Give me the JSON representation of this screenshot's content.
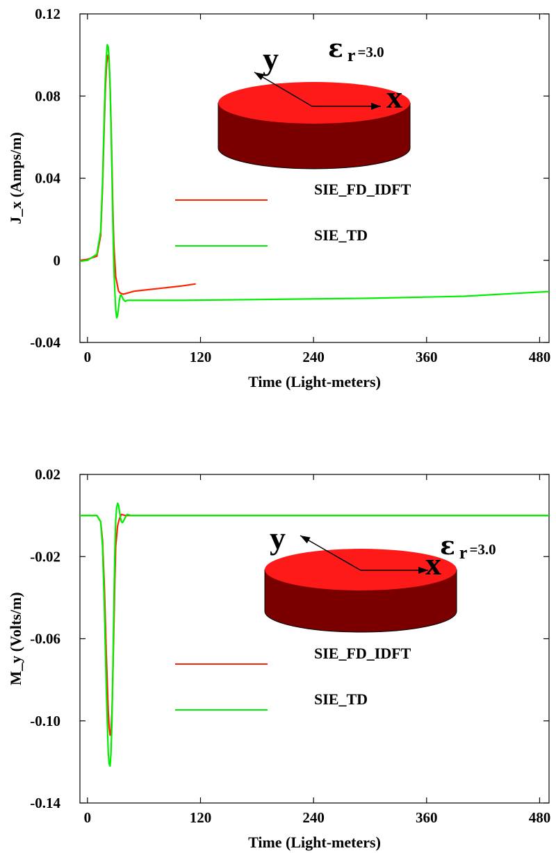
{
  "chart_data": [
    {
      "type": "line",
      "title": "",
      "xlabel": "Time (Light-meters)",
      "ylabel": "J_x (Amps/m)",
      "xlim": [
        -8,
        490
      ],
      "ylim": [
        -0.04,
        0.12
      ],
      "xticks": [
        0,
        120,
        240,
        360,
        480
      ],
      "xtick_labels": [
        "0",
        "120",
        "240",
        "360",
        "480"
      ],
      "yticks": [
        0.12,
        0.08,
        0.04,
        0,
        -0.04
      ],
      "ytick_labels": [
        "0.12",
        "0.08",
        "0.04",
        "0",
        "-0.04"
      ],
      "grid": false,
      "legend": "center-left",
      "inset": {
        "axis_x": "x",
        "axis_y": "y",
        "eps_symbol": "ε",
        "eps_sub": "r",
        "eps_value": "=3.0"
      },
      "series": [
        {
          "name": "SIE_FD_IDFT",
          "color": "#ff2200",
          "x": [
            -8,
            0,
            10,
            14,
            16,
            18,
            19,
            20,
            21,
            22,
            23,
            24,
            25,
            26,
            27,
            28,
            30,
            33,
            35,
            38,
            42,
            50,
            80,
            100,
            115
          ],
          "y": [
            0.0,
            0.0005,
            0.002,
            0.012,
            0.035,
            0.068,
            0.083,
            0.093,
            0.099,
            0.1,
            0.096,
            0.085,
            0.068,
            0.047,
            0.025,
            0.008,
            -0.008,
            -0.015,
            -0.016,
            -0.0165,
            -0.016,
            -0.015,
            -0.0135,
            -0.0125,
            -0.0115
          ]
        },
        {
          "name": "SIE_TD",
          "color": "#00ee00",
          "x": [
            -8,
            0,
            10,
            14,
            16,
            18,
            19,
            20,
            21,
            22,
            23,
            24,
            25,
            26,
            27,
            28,
            29,
            30,
            31,
            32,
            33,
            34,
            35,
            36,
            37,
            38,
            40,
            42,
            44,
            50,
            100,
            200,
            300,
            400,
            490
          ],
          "y": [
            -0.0005,
            0.0,
            0.003,
            0.014,
            0.038,
            0.073,
            0.089,
            0.099,
            0.105,
            0.104,
            0.098,
            0.085,
            0.066,
            0.042,
            0.018,
            -0.003,
            -0.015,
            -0.024,
            -0.028,
            -0.027,
            -0.023,
            -0.019,
            -0.017,
            -0.017,
            -0.018,
            -0.019,
            -0.02,
            -0.0195,
            -0.0195,
            -0.0195,
            -0.0195,
            -0.019,
            -0.0185,
            -0.0175,
            -0.0152
          ]
        }
      ]
    },
    {
      "type": "line",
      "title": "",
      "xlabel": "Time (Light-meters)",
      "ylabel": "M_y (Volts/m)",
      "xlim": [
        -8,
        490
      ],
      "ylim": [
        -0.14,
        0.02
      ],
      "xticks": [
        0,
        120,
        240,
        360,
        480
      ],
      "xtick_labels": [
        "0",
        "120",
        "240",
        "360",
        "480"
      ],
      "yticks": [
        0.02,
        -0.02,
        -0.06,
        -0.1,
        -0.14
      ],
      "ytick_labels": [
        "0.02",
        "-0.02",
        "-0.06",
        "-0.10",
        "-0.14"
      ],
      "grid": false,
      "legend": "center-left",
      "inset": {
        "axis_x": "x",
        "axis_y": "y",
        "eps_symbol": "ε",
        "eps_sub": "r",
        "eps_value": "=3.0"
      },
      "series": [
        {
          "name": "SIE_FD_IDFT",
          "color": "#ff2200",
          "x": [
            -8,
            10,
            14,
            16,
            18,
            20,
            22,
            23,
            24,
            25,
            26,
            27,
            28,
            29,
            30,
            32,
            34,
            36,
            40,
            45,
            50,
            490
          ],
          "y": [
            0.0,
            0.0,
            -0.003,
            -0.012,
            -0.035,
            -0.068,
            -0.095,
            -0.103,
            -0.107,
            -0.105,
            -0.096,
            -0.078,
            -0.055,
            -0.032,
            -0.015,
            -0.005,
            -0.0015,
            0.0005,
            0.0,
            0.0,
            0.0,
            0.0
          ]
        },
        {
          "name": "SIE_TD",
          "color": "#00ee00",
          "x": [
            -8,
            10,
            14,
            16,
            18,
            20,
            22,
            23,
            24,
            25,
            26,
            27,
            28,
            29,
            30,
            31,
            32,
            33,
            34,
            35,
            36,
            37,
            38,
            40,
            42,
            44,
            46,
            50,
            490
          ],
          "y": [
            0.0,
            0.0,
            -0.003,
            -0.015,
            -0.045,
            -0.085,
            -0.115,
            -0.121,
            -0.122,
            -0.116,
            -0.1,
            -0.075,
            -0.045,
            -0.018,
            -0.002,
            0.004,
            0.006,
            0.005,
            0.002,
            -0.001,
            -0.003,
            -0.0035,
            -0.003,
            -0.001,
            0.0005,
            0.0003,
            0.0,
            0.0,
            0.0
          ]
        }
      ]
    }
  ]
}
